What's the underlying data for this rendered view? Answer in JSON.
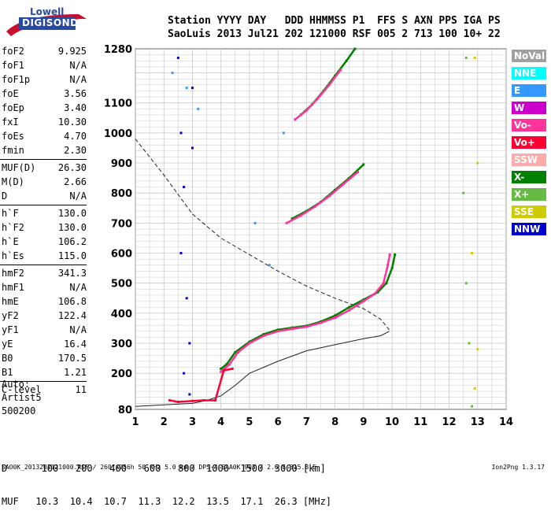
{
  "logo": {
    "line1": "Lowell",
    "line2": "DIGISONDE"
  },
  "header": {
    "columns": [
      "Station",
      "YYYY",
      "DAY",
      "DDD",
      "HHMMSS",
      "P1",
      "FFS",
      "S",
      "AXN",
      "PPS",
      "IGA",
      "PS"
    ],
    "values": [
      "SaoLuis",
      "2013",
      "Jul21",
      "202",
      "121000",
      "RSF",
      "005",
      "2",
      "713",
      "100",
      "10+",
      "22"
    ]
  },
  "params_groups": [
    [
      {
        "label": "foF2",
        "value": "9.925"
      },
      {
        "label": "foF1",
        "value": "N/A"
      },
      {
        "label": "foF1p",
        "value": "N/A"
      },
      {
        "label": "foE",
        "value": "3.56"
      },
      {
        "label": "foEp",
        "value": "3.40"
      },
      {
        "label": "fxI",
        "value": "10.30"
      },
      {
        "label": "foEs",
        "value": "4.70"
      },
      {
        "label": "fmin",
        "value": "2.30"
      }
    ],
    [
      {
        "label": "MUF(D)",
        "value": "26.30"
      },
      {
        "label": "M(D)",
        "value": "2.66"
      },
      {
        "label": "D",
        "value": "N/A"
      }
    ],
    [
      {
        "label": "h`F",
        "value": "130.0"
      },
      {
        "label": "h`F2",
        "value": "130.0"
      },
      {
        "label": "h`E",
        "value": "106.2"
      },
      {
        "label": "h`Es",
        "value": "115.0"
      }
    ],
    [
      {
        "label": "hmF2",
        "value": "341.3"
      },
      {
        "label": "hmF1",
        "value": "N/A"
      },
      {
        "label": "hmE",
        "value": "106.8"
      },
      {
        "label": "yF2",
        "value": "122.4"
      },
      {
        "label": "yF1",
        "value": "N/A"
      },
      {
        "label": "yE",
        "value": "16.4"
      },
      {
        "label": "B0",
        "value": "170.5"
      },
      {
        "label": "B1",
        "value": "1.21"
      }
    ],
    [
      {
        "label": "C-level",
        "value": "11"
      }
    ]
  ],
  "artist": {
    "line1": "Auto:",
    "line2": "Artist5",
    "line3": "500200"
  },
  "legend": [
    {
      "label": "NoVal",
      "color": "#a0a0a0"
    },
    {
      "label": "NNE",
      "color": "#00ffff"
    },
    {
      "label": "E",
      "color": "#3399ff"
    },
    {
      "label": "W",
      "color": "#cc00cc"
    },
    {
      "label": "Vo-",
      "color": "#ff3399"
    },
    {
      "label": "Vo+",
      "color": "#ff0033"
    },
    {
      "label": "SSW",
      "color": "#ffaaaa"
    },
    {
      "label": "X-",
      "color": "#008000"
    },
    {
      "label": "X+",
      "color": "#66bb44"
    },
    {
      "label": "SSE",
      "color": "#cccc00"
    },
    {
      "label": "NNW",
      "color": "#0000cc"
    }
  ],
  "freq_table": {
    "row1_label": "D",
    "row1_values": [
      "100",
      "200",
      "400",
      "600",
      "800",
      "1000",
      "1500",
      "3000"
    ],
    "row1_unit": "[km]",
    "row2_label": "MUF",
    "row2_values": [
      "10.3",
      "10.4",
      "10.7",
      "11.3",
      "12.2",
      "13.5",
      "17.1",
      "26.3"
    ],
    "row2_unit": "[MHz]"
  },
  "footer": {
    "left": "SAO0K_2013202121000.RSF / 260fx256h 50 kHz 5.0 km / DPS-4 SAA0K 903 / 2.6 S 315.8 E",
    "right": "Ion2Png 1.3.17"
  },
  "chart_data": {
    "type": "scatter",
    "title": "",
    "xlabel": "",
    "ylabel": "",
    "xlim": [
      1,
      14
    ],
    "ylim": [
      80,
      1280
    ],
    "x_ticks": [
      1,
      2,
      3,
      4,
      5,
      6,
      7,
      8,
      9,
      10,
      11,
      12,
      13,
      14
    ],
    "y_ticks": [
      80,
      200,
      300,
      400,
      500,
      600,
      700,
      800,
      900,
      1000,
      1100,
      1280
    ],
    "grid": true,
    "legend_placement": "right",
    "series": [
      {
        "name": "X-",
        "color": "#008000",
        "points": [
          [
            4.0,
            215
          ],
          [
            4.2,
            230
          ],
          [
            4.5,
            270
          ],
          [
            5.0,
            305
          ],
          [
            5.5,
            330
          ],
          [
            6.0,
            345
          ],
          [
            6.5,
            352
          ],
          [
            7.0,
            358
          ],
          [
            7.5,
            372
          ],
          [
            8.0,
            392
          ],
          [
            8.5,
            420
          ],
          [
            9.0,
            445
          ],
          [
            9.5,
            470
          ],
          [
            9.8,
            500
          ],
          [
            10.0,
            550
          ],
          [
            10.1,
            595
          ]
        ]
      },
      {
        "name": "Vo-",
        "color": "#ff3399",
        "points": [
          [
            4.0,
            205
          ],
          [
            4.3,
            230
          ],
          [
            4.6,
            270
          ],
          [
            5.0,
            300
          ],
          [
            5.5,
            325
          ],
          [
            6.0,
            340
          ],
          [
            6.5,
            348
          ],
          [
            7.0,
            355
          ],
          [
            7.5,
            368
          ],
          [
            8.0,
            385
          ],
          [
            8.5,
            410
          ],
          [
            9.0,
            440
          ],
          [
            9.4,
            465
          ],
          [
            9.7,
            500
          ],
          [
            9.85,
            560
          ],
          [
            9.92,
            595
          ]
        ]
      },
      {
        "name": "X- (2)",
        "color": "#008000",
        "points": [
          [
            6.5,
            715
          ],
          [
            7.0,
            740
          ],
          [
            7.5,
            770
          ],
          [
            8.0,
            810
          ],
          [
            8.5,
            850
          ],
          [
            9.0,
            895
          ]
        ]
      },
      {
        "name": "Vo- (2)",
        "color": "#ff3399",
        "points": [
          [
            6.3,
            700
          ],
          [
            6.8,
            725
          ],
          [
            7.3,
            755
          ],
          [
            7.8,
            790
          ],
          [
            8.3,
            830
          ],
          [
            8.8,
            870
          ]
        ]
      },
      {
        "name": "X- (3)",
        "color": "#008000",
        "points": [
          [
            6.8,
            1060
          ],
          [
            7.2,
            1095
          ],
          [
            7.6,
            1140
          ],
          [
            8.0,
            1190
          ],
          [
            8.4,
            1240
          ],
          [
            8.7,
            1280
          ]
        ]
      },
      {
        "name": "Vo- (3)",
        "color": "#ff3399",
        "points": [
          [
            6.6,
            1045
          ],
          [
            7.0,
            1075
          ],
          [
            7.4,
            1115
          ],
          [
            7.8,
            1160
          ],
          [
            8.2,
            1210
          ]
        ]
      },
      {
        "name": "NNW",
        "color": "#0000cc",
        "points": [
          [
            2.5,
            1250
          ],
          [
            2.6,
            1000
          ],
          [
            2.7,
            820
          ],
          [
            2.6,
            600
          ],
          [
            2.8,
            450
          ],
          [
            2.9,
            300
          ],
          [
            2.7,
            200
          ],
          [
            2.9,
            130
          ],
          [
            3.0,
            1150
          ],
          [
            3.0,
            950
          ]
        ]
      },
      {
        "name": "Vo+",
        "color": "#ff0033",
        "points": [
          [
            2.2,
            110
          ],
          [
            2.5,
            105
          ],
          [
            3.0,
            108
          ],
          [
            3.4,
            110
          ],
          [
            3.8,
            110
          ],
          [
            4.1,
            210
          ],
          [
            4.4,
            215
          ]
        ]
      },
      {
        "name": "E",
        "color": "#3399ff",
        "points": [
          [
            2.3,
            1200
          ],
          [
            2.8,
            1150
          ],
          [
            3.2,
            1080
          ],
          [
            5.2,
            700
          ],
          [
            5.7,
            560
          ],
          [
            6.2,
            1000
          ]
        ]
      },
      {
        "name": "SSE",
        "color": "#cccc00",
        "points": [
          [
            12.9,
            1250
          ],
          [
            13.0,
            900
          ],
          [
            12.8,
            600
          ],
          [
            13.0,
            280
          ],
          [
            12.9,
            150
          ]
        ]
      },
      {
        "name": "X+",
        "color": "#66bb44",
        "points": [
          [
            12.6,
            1250
          ],
          [
            12.5,
            800
          ],
          [
            12.6,
            500
          ],
          [
            12.7,
            300
          ],
          [
            12.8,
            90
          ]
        ]
      }
    ],
    "profile_solid": [
      [
        1.0,
        90
      ],
      [
        2.0,
        95
      ],
      [
        3.0,
        100
      ],
      [
        3.5,
        110
      ],
      [
        4.0,
        125
      ],
      [
        4.5,
        160
      ],
      [
        5.0,
        200
      ],
      [
        6.0,
        240
      ],
      [
        7.0,
        275
      ],
      [
        8.0,
        295
      ],
      [
        9.0,
        315
      ],
      [
        9.6,
        325
      ],
      [
        9.9,
        340
      ]
    ],
    "profile_dashed": [
      [
        1.0,
        980
      ],
      [
        2.0,
        860
      ],
      [
        3.0,
        730
      ],
      [
        4.0,
        650
      ],
      [
        5.0,
        595
      ],
      [
        6.0,
        540
      ],
      [
        7.0,
        490
      ],
      [
        8.0,
        450
      ],
      [
        9.0,
        415
      ],
      [
        9.6,
        380
      ],
      [
        9.9,
        345
      ]
    ]
  }
}
